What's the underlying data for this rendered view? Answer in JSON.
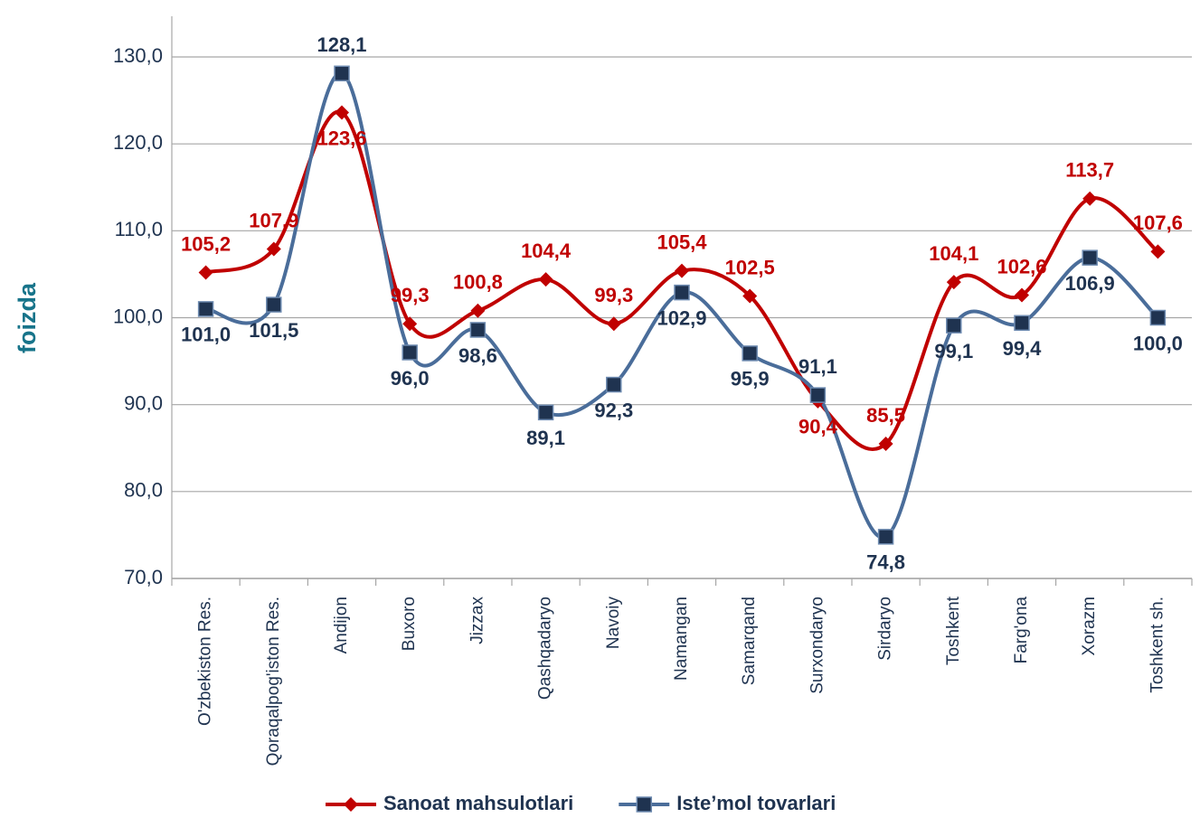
{
  "chart_data": {
    "type": "line",
    "y_label": "foizda",
    "categories": [
      "O'zbekiston Res.",
      "Qoraqalpog'iston Res.",
      "Andijon",
      "Buxoro",
      "Jizzax",
      "Qashqadaryo",
      "Navoiy",
      "Namangan",
      "Samarqand",
      "Surxondaryo",
      "Sirdaryo",
      "Toshkent",
      "Farg'ona",
      "Xorazm",
      "Toshkent sh."
    ],
    "series": [
      {
        "name": "Sanoat mahsulotlari",
        "color": "#c00000",
        "marker": "diamond",
        "values": [
          105.2,
          107.9,
          123.6,
          99.3,
          100.8,
          104.4,
          99.3,
          105.4,
          102.5,
          90.4,
          85.5,
          104.1,
          102.6,
          113.7,
          107.6
        ],
        "value_labels": [
          "105,2",
          "107,9",
          "123,6",
          "99,3",
          "100,8",
          "104,4",
          "99,3",
          "105,4",
          "102,5",
          "90,4",
          "85,5",
          "104,1",
          "102,6",
          "113,7",
          "107,6"
        ]
      },
      {
        "name": "Iste’mol tovarlari",
        "color": "#4a6d9a",
        "marker": "square",
        "values": [
          101.0,
          101.5,
          128.1,
          96.0,
          98.6,
          89.1,
          92.3,
          102.9,
          95.9,
          91.1,
          74.8,
          99.1,
          99.4,
          106.9,
          100.0
        ],
        "value_labels": [
          "101,0",
          "101,5",
          "128,1",
          "96,0",
          "98,6",
          "89,1",
          "92,3",
          "102,9",
          "95,9",
          "91,1",
          "74,8",
          "99,1",
          "99,4",
          "106,9",
          "100,0"
        ]
      }
    ],
    "ylim": [
      70,
      130
    ],
    "yticks": [
      {
        "value": 70,
        "label": "70,0"
      },
      {
        "value": 80,
        "label": "80,0"
      },
      {
        "value": 90,
        "label": "90,0"
      },
      {
        "value": 100,
        "label": "100,0"
      },
      {
        "value": 110,
        "label": "110,0"
      },
      {
        "value": 120,
        "label": "120,0"
      },
      {
        "value": 130,
        "label": "130,0"
      }
    ],
    "grid": true,
    "legend": "bottom"
  }
}
